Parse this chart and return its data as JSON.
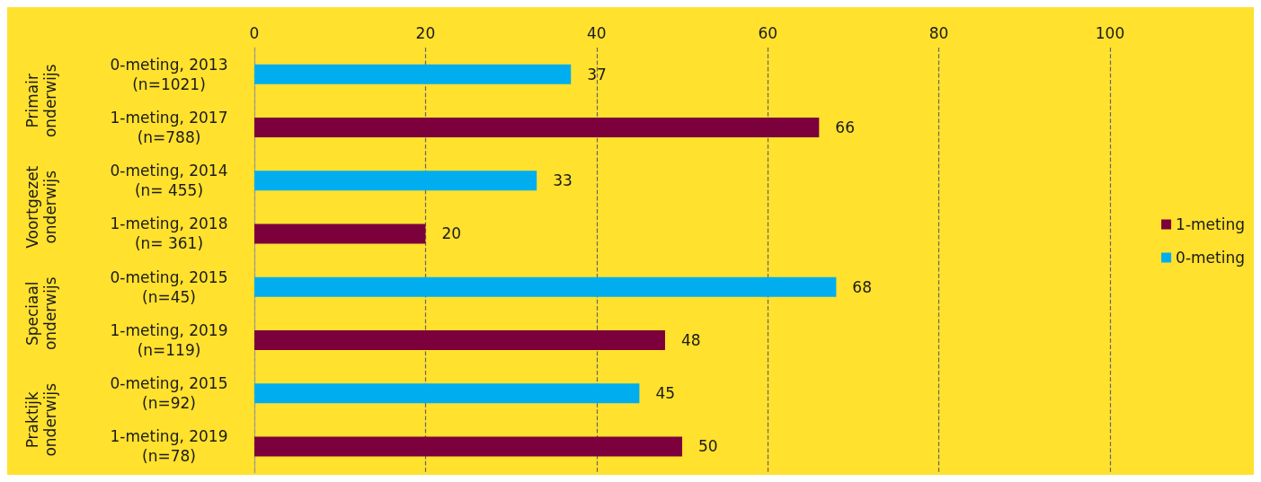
{
  "chart_data": {
    "type": "bar",
    "orientation": "horizontal",
    "categories": [
      "0-meting, 2013\n(n=1021)",
      "1-meting, 2017\n(n=788)",
      "0-meting, 2014\n(n= 455)",
      "1-meting, 2018\n(n= 361)",
      "0-meting, 2015\n(n=45)",
      "1-meting, 2019\n(n=119)",
      "0-meting, 2015\n(n=92)",
      "1-meting, 2019\n(n=78)"
    ],
    "series": [
      {
        "name": "1-meting",
        "color": "#7b003c",
        "values": [
          null,
          66,
          null,
          20,
          null,
          48,
          null,
          50
        ]
      },
      {
        "name": "0-meting",
        "color": "#00aeef",
        "values": [
          37,
          null,
          33,
          null,
          68,
          null,
          45,
          null
        ]
      }
    ],
    "annotations": [
      "Primair\nonderwijs",
      "Voortgezet\nonderwijs",
      "Speciaal\nonderwijs",
      "Praktijk\nonderwijs"
    ],
    "xlim": [
      0,
      100
    ],
    "xticks": [
      0,
      20,
      40,
      60,
      80,
      100
    ],
    "grid": "x",
    "legend": "right",
    "data_labels": true
  }
}
